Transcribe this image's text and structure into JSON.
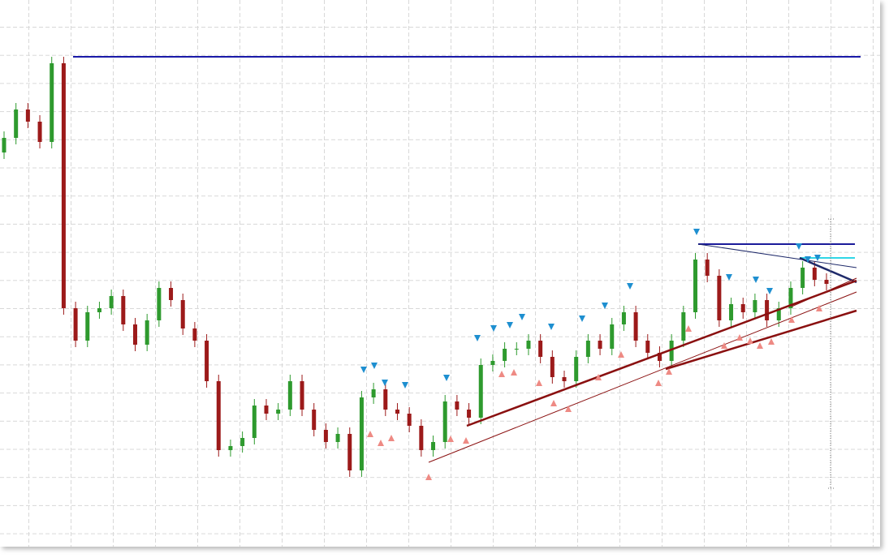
{
  "chart_data": {
    "type": "candlestick",
    "ylim": [
      0,
      688
    ],
    "up_color": "#2e9a2e",
    "down_color": "#9c1a1a",
    "open": [
      500,
      518,
      553,
      538,
      513,
      610,
      308,
      268,
      303,
      308,
      323,
      288,
      263,
      293,
      333,
      318,
      283,
      268,
      218,
      133,
      138,
      148,
      188,
      178,
      183,
      218,
      183,
      158,
      143,
      153,
      108,
      198,
      208,
      183,
      178,
      163,
      133,
      143,
      193,
      183,
      173,
      238,
      243,
      258,
      258,
      268,
      248,
      223,
      218,
      248,
      268,
      258,
      288,
      303,
      268,
      253,
      243,
      268,
      303,
      368,
      348,
      293,
      313,
      303,
      318,
      293,
      308,
      333,
      358,
      343
    ],
    "high": [
      526,
      561,
      561,
      546,
      618,
      618,
      316,
      311,
      316,
      331,
      331,
      296,
      301,
      341,
      341,
      326,
      291,
      276,
      226,
      146,
      156,
      196,
      196,
      191,
      226,
      226,
      191,
      166,
      161,
      161,
      206,
      216,
      216,
      191,
      186,
      171,
      151,
      201,
      201,
      191,
      246,
      251,
      266,
      266,
      276,
      276,
      256,
      231,
      256,
      276,
      276,
      296,
      311,
      311,
      276,
      261,
      276,
      311,
      376,
      376,
      356,
      321,
      321,
      326,
      326,
      316,
      341,
      366,
      366,
      351
    ],
    "low": [
      492,
      510,
      530,
      505,
      505,
      300,
      260,
      260,
      295,
      300,
      280,
      255,
      255,
      285,
      310,
      275,
      260,
      210,
      125,
      125,
      130,
      140,
      170,
      170,
      175,
      175,
      150,
      135,
      135,
      100,
      100,
      190,
      175,
      170,
      155,
      125,
      125,
      135,
      175,
      165,
      165,
      230,
      235,
      250,
      250,
      240,
      215,
      210,
      210,
      240,
      250,
      250,
      280,
      260,
      245,
      235,
      235,
      260,
      295,
      340,
      285,
      285,
      295,
      295,
      285,
      285,
      300,
      325,
      335,
      330
    ],
    "close": [
      518,
      553,
      538,
      513,
      610,
      308,
      268,
      303,
      308,
      323,
      288,
      263,
      293,
      333,
      318,
      283,
      268,
      218,
      133,
      138,
      148,
      188,
      178,
      183,
      218,
      183,
      158,
      143,
      153,
      108,
      198,
      208,
      183,
      178,
      163,
      133,
      143,
      193,
      183,
      173,
      238,
      243,
      258,
      258,
      268,
      248,
      223,
      218,
      248,
      268,
      258,
      288,
      303,
      268,
      253,
      243,
      268,
      303,
      368,
      348,
      293,
      313,
      303,
      318,
      293,
      308,
      333,
      358,
      343,
      338
    ]
  }
}
